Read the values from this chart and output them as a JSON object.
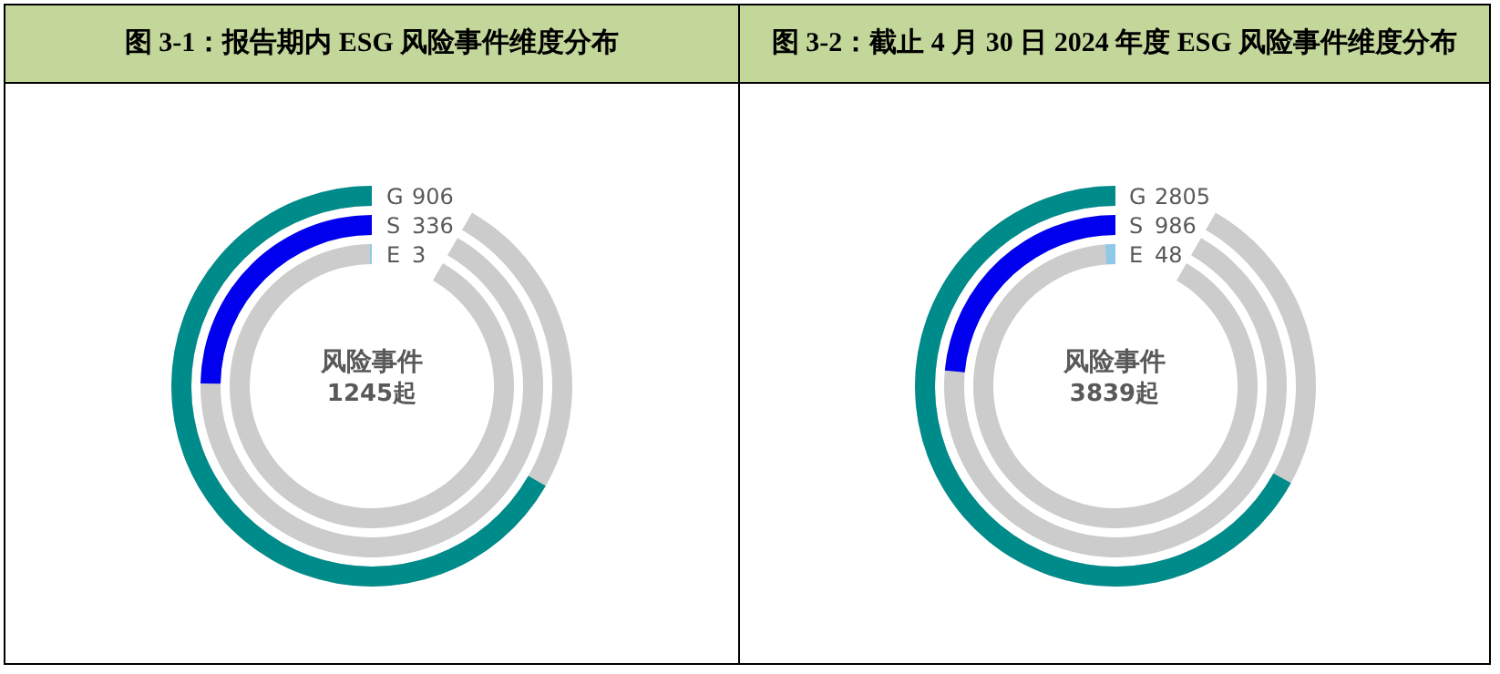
{
  "chart_data": [
    {
      "type": "other",
      "title": "图 3-1：报告期内 ESG 风险事件维度分布",
      "categories": [
        "G",
        "S",
        "E"
      ],
      "values": [
        906,
        336,
        3
      ],
      "value_labels": [
        "906",
        "336",
        "3"
      ],
      "colors": [
        "#008b8b",
        "#0000ee",
        "#8ec9e8"
      ],
      "annotations": [
        "风险事件",
        "1245起"
      ]
    },
    {
      "type": "other",
      "title": "图 3-2：截止 4 月 30 日 2024 年度 ESG 风险事件维度分布",
      "categories": [
        "G",
        "S",
        "E"
      ],
      "values": [
        2805,
        986,
        48
      ],
      "value_labels": [
        "2805",
        "986",
        "48"
      ],
      "colors": [
        "#008b8b",
        "#0000ee",
        "#8ec9e8"
      ],
      "annotations": [
        "风险事件",
        "3839起"
      ]
    }
  ]
}
